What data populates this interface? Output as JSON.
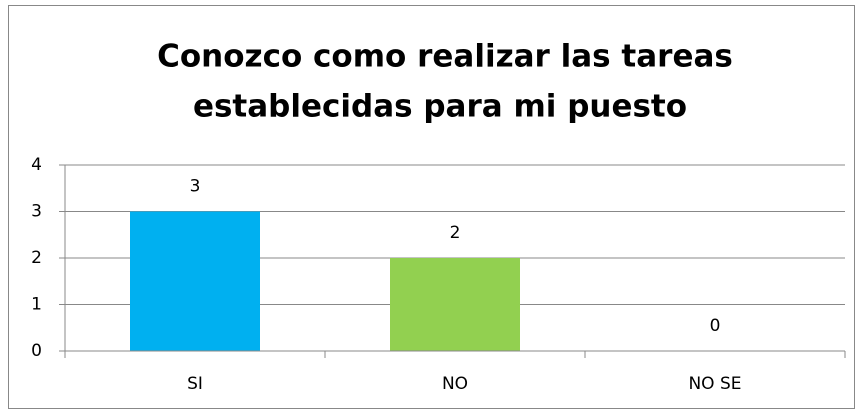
{
  "chart_data": {
    "type": "bar",
    "title": [
      "Conozco como realizar las tareas",
      "establecidas para mi puesto"
    ],
    "categories": [
      "SI",
      "NO",
      "NO SE"
    ],
    "values": [
      3,
      2,
      0
    ],
    "colors": [
      "#00b0f0",
      "#92d050",
      "#c0504d"
    ],
    "ylim": [
      0,
      4
    ],
    "yticks": [
      0,
      1,
      2,
      3,
      4
    ],
    "grid": true
  }
}
